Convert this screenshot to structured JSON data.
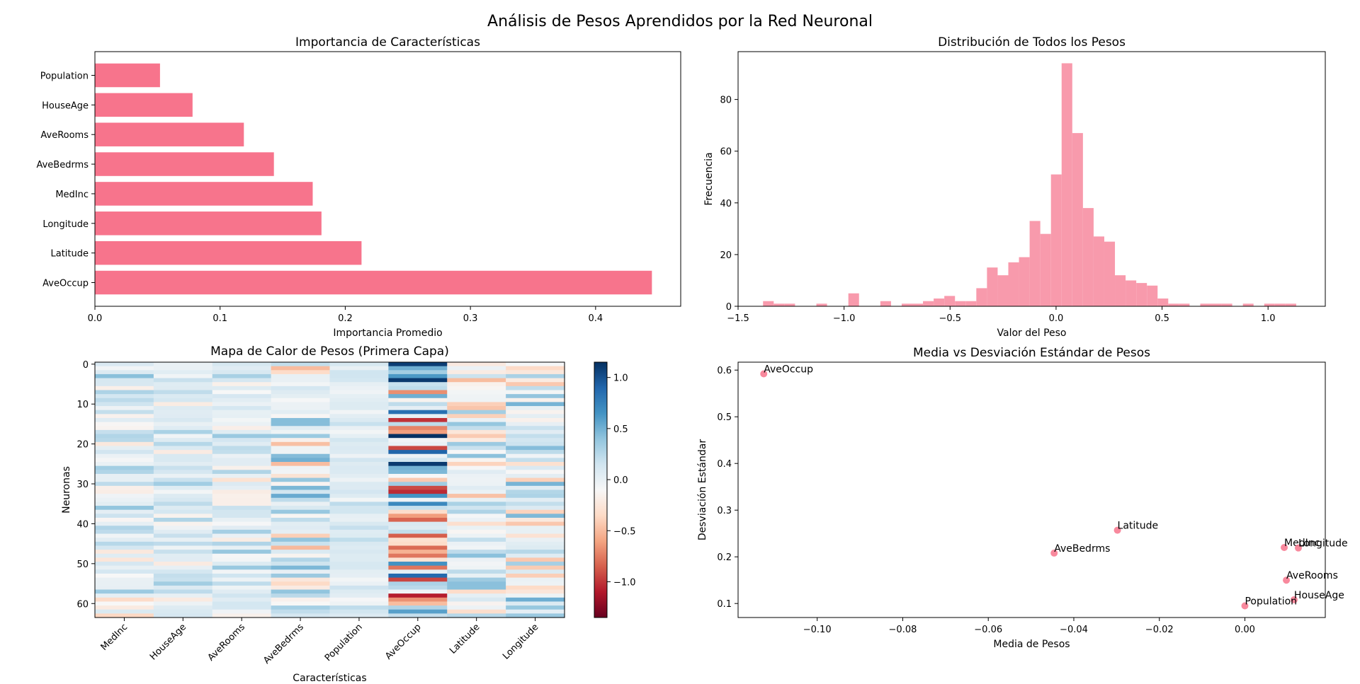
{
  "suptitle": "Análisis de Pesos Aprendidos por la Red Neuronal",
  "colors": {
    "accent": "#f7748c",
    "hist": "#f89aac"
  },
  "chart_data": [
    {
      "type": "bar",
      "orientation": "horizontal",
      "title": "Importancia de Características",
      "xlabel": "Importancia Promedio",
      "ylabel": "",
      "categories": [
        "AveOccup",
        "Latitude",
        "Longitude",
        "MedInc",
        "AveBedrms",
        "AveRooms",
        "HouseAge",
        "Population"
      ],
      "values": [
        0.445,
        0.213,
        0.181,
        0.174,
        0.143,
        0.119,
        0.078,
        0.052
      ],
      "xlim": [
        0,
        0.468
      ],
      "xticks": [
        0.0,
        0.1,
        0.2,
        0.3,
        0.4
      ],
      "xtick_labels": [
        "0.0",
        "0.1",
        "0.2",
        "0.3",
        "0.4"
      ]
    },
    {
      "type": "bar",
      "subtype": "histogram",
      "title": "Distribución de Todos los Pesos",
      "xlabel": "Valor del Peso",
      "ylabel": "Frecuencia",
      "bin_start": -1.3822,
      "bin_width": 0.0503,
      "counts": [
        2,
        1,
        1,
        0,
        0,
        1,
        0,
        0,
        5,
        0,
        0,
        2,
        0,
        1,
        1,
        2,
        3,
        4,
        2,
        2,
        7,
        15,
        12,
        17,
        19,
        33,
        28,
        51,
        94,
        67,
        38,
        27,
        25,
        12,
        10,
        9,
        8,
        3,
        1,
        1,
        0,
        1,
        1,
        1,
        0,
        1,
        0,
        1,
        1,
        1
      ],
      "xlim": [
        -1.5,
        1.27
      ],
      "ylim": [
        0,
        98.5
      ],
      "xticks": [
        -1.5,
        -1.0,
        -0.5,
        0.0,
        0.5,
        1.0
      ],
      "xtick_labels": [
        "−1.5",
        "−1.0",
        "−0.5",
        "0.0",
        "0.5",
        "1.0"
      ],
      "yticks": [
        0,
        20,
        40,
        60,
        80
      ],
      "ytick_labels": [
        "0",
        "20",
        "40",
        "60",
        "80"
      ]
    },
    {
      "type": "heatmap",
      "title": "Mapa de Calor de Pesos (Primera Capa)",
      "xlabel": "Características",
      "ylabel": "Neuronas",
      "columns": [
        "MedInc",
        "HouseAge",
        "AveRooms",
        "AveBedrms",
        "Population",
        "AveOccup",
        "Latitude",
        "Longitude"
      ],
      "n_rows": 64,
      "yticks": [
        0,
        10,
        20,
        30,
        40,
        50,
        60
      ],
      "ytick_labels": [
        "0",
        "10",
        "20",
        "30",
        "40",
        "50",
        "60"
      ],
      "vmin": -1.35,
      "vmax": 1.15,
      "colorbar_ticks": [
        1.0,
        0.5,
        0.0,
        -0.5,
        -1.0
      ],
      "colorbar_tick_labels": [
        "1.0",
        "0.5",
        "0.0",
        "−0.5",
        "−1.0"
      ]
    },
    {
      "type": "scatter",
      "title": "Media vs Desviación Estándar de Pesos",
      "xlabel": "Media de Pesos",
      "ylabel": "Desviación Estándar",
      "points": [
        {
          "label": "MedInc",
          "x": 0.0092,
          "y": 0.22
        },
        {
          "label": "HouseAge",
          "x": 0.0115,
          "y": 0.108
        },
        {
          "label": "AveRooms",
          "x": 0.0097,
          "y": 0.15
        },
        {
          "label": "AveBedrms",
          "x": -0.0446,
          "y": 0.208
        },
        {
          "label": "Population",
          "x": 0.0,
          "y": 0.095
        },
        {
          "label": "AveOccup",
          "x": -0.1125,
          "y": 0.592
        },
        {
          "label": "Latitude",
          "x": -0.0298,
          "y": 0.257
        },
        {
          "label": "Longitude",
          "x": 0.0125,
          "y": 0.219
        }
      ],
      "xlim": [
        -0.1185,
        0.0188
      ],
      "ylim": [
        0.07,
        0.617
      ],
      "xticks": [
        -0.1,
        -0.08,
        -0.06,
        -0.04,
        -0.02,
        0.0
      ],
      "xtick_labels": [
        "−0.10",
        "−0.08",
        "−0.06",
        "−0.04",
        "−0.02",
        "0.00"
      ],
      "yticks": [
        0.1,
        0.2,
        0.3,
        0.4,
        0.5,
        0.6
      ],
      "ytick_labels": [
        "0.1",
        "0.2",
        "0.3",
        "0.4",
        "0.5",
        "0.6"
      ]
    }
  ]
}
